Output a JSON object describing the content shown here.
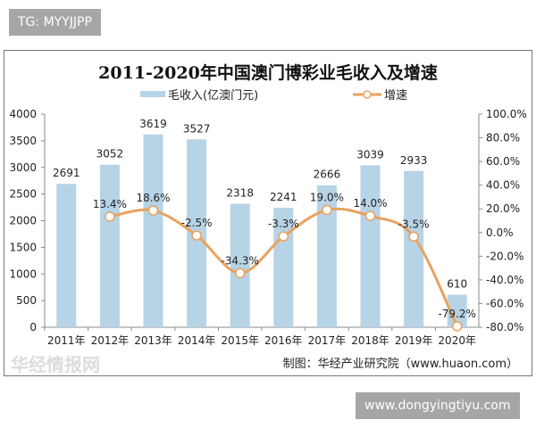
{
  "tag": "TG: MYYJJPP",
  "site": "www.dongyingtiyu.com",
  "source": "制图：华经产业研究院（www.huaon.com）",
  "watermark": "华经情报网",
  "colors": {
    "bar": "#b7d3e6",
    "line": "#e9a25e"
  },
  "chart_data": {
    "type": "bar+line",
    "title": "2011-2020年中国澳门博彩业毛收入及增速",
    "categories": [
      "2011年",
      "2012年",
      "2013年",
      "2014年",
      "2015年",
      "2016年",
      "2017年",
      "2018年",
      "2019年",
      "2020年"
    ],
    "series": [
      {
        "name": "毛收入(亿澳门元)",
        "type": "bar",
        "axis": "left",
        "values": [
          2691,
          3052,
          3619,
          3527,
          2318,
          2241,
          2666,
          3039,
          2933,
          610
        ],
        "labels": [
          "2691",
          "3052",
          "3619",
          "3527",
          "2318",
          "2241",
          "2666",
          "3039",
          "2933",
          "610"
        ]
      },
      {
        "name": "增速",
        "type": "line",
        "axis": "right",
        "values": [
          null,
          13.4,
          18.6,
          -2.5,
          -34.3,
          -3.3,
          19.0,
          14.0,
          -3.5,
          -79.2
        ],
        "labels": [
          "",
          "13.4%",
          "18.6%",
          "-2.5%",
          "-34.3%",
          "-3.3%",
          "19.0%",
          "14.0%",
          "-3.5%",
          "-79.2%"
        ]
      }
    ],
    "y_left": {
      "min": 0,
      "max": 4000,
      "ticks": [
        "0",
        "500",
        "1000",
        "1500",
        "2000",
        "2500",
        "3000",
        "3500",
        "4000"
      ]
    },
    "y_right": {
      "min": -80,
      "max": 100,
      "ticks": [
        "-80.0%",
        "-60.0%",
        "-40.0%",
        "-20.0%",
        "0.0%",
        "20.0%",
        "40.0%",
        "60.0%",
        "80.0%",
        "100.0%"
      ]
    },
    "legend": "top-center",
    "grid": false
  }
}
